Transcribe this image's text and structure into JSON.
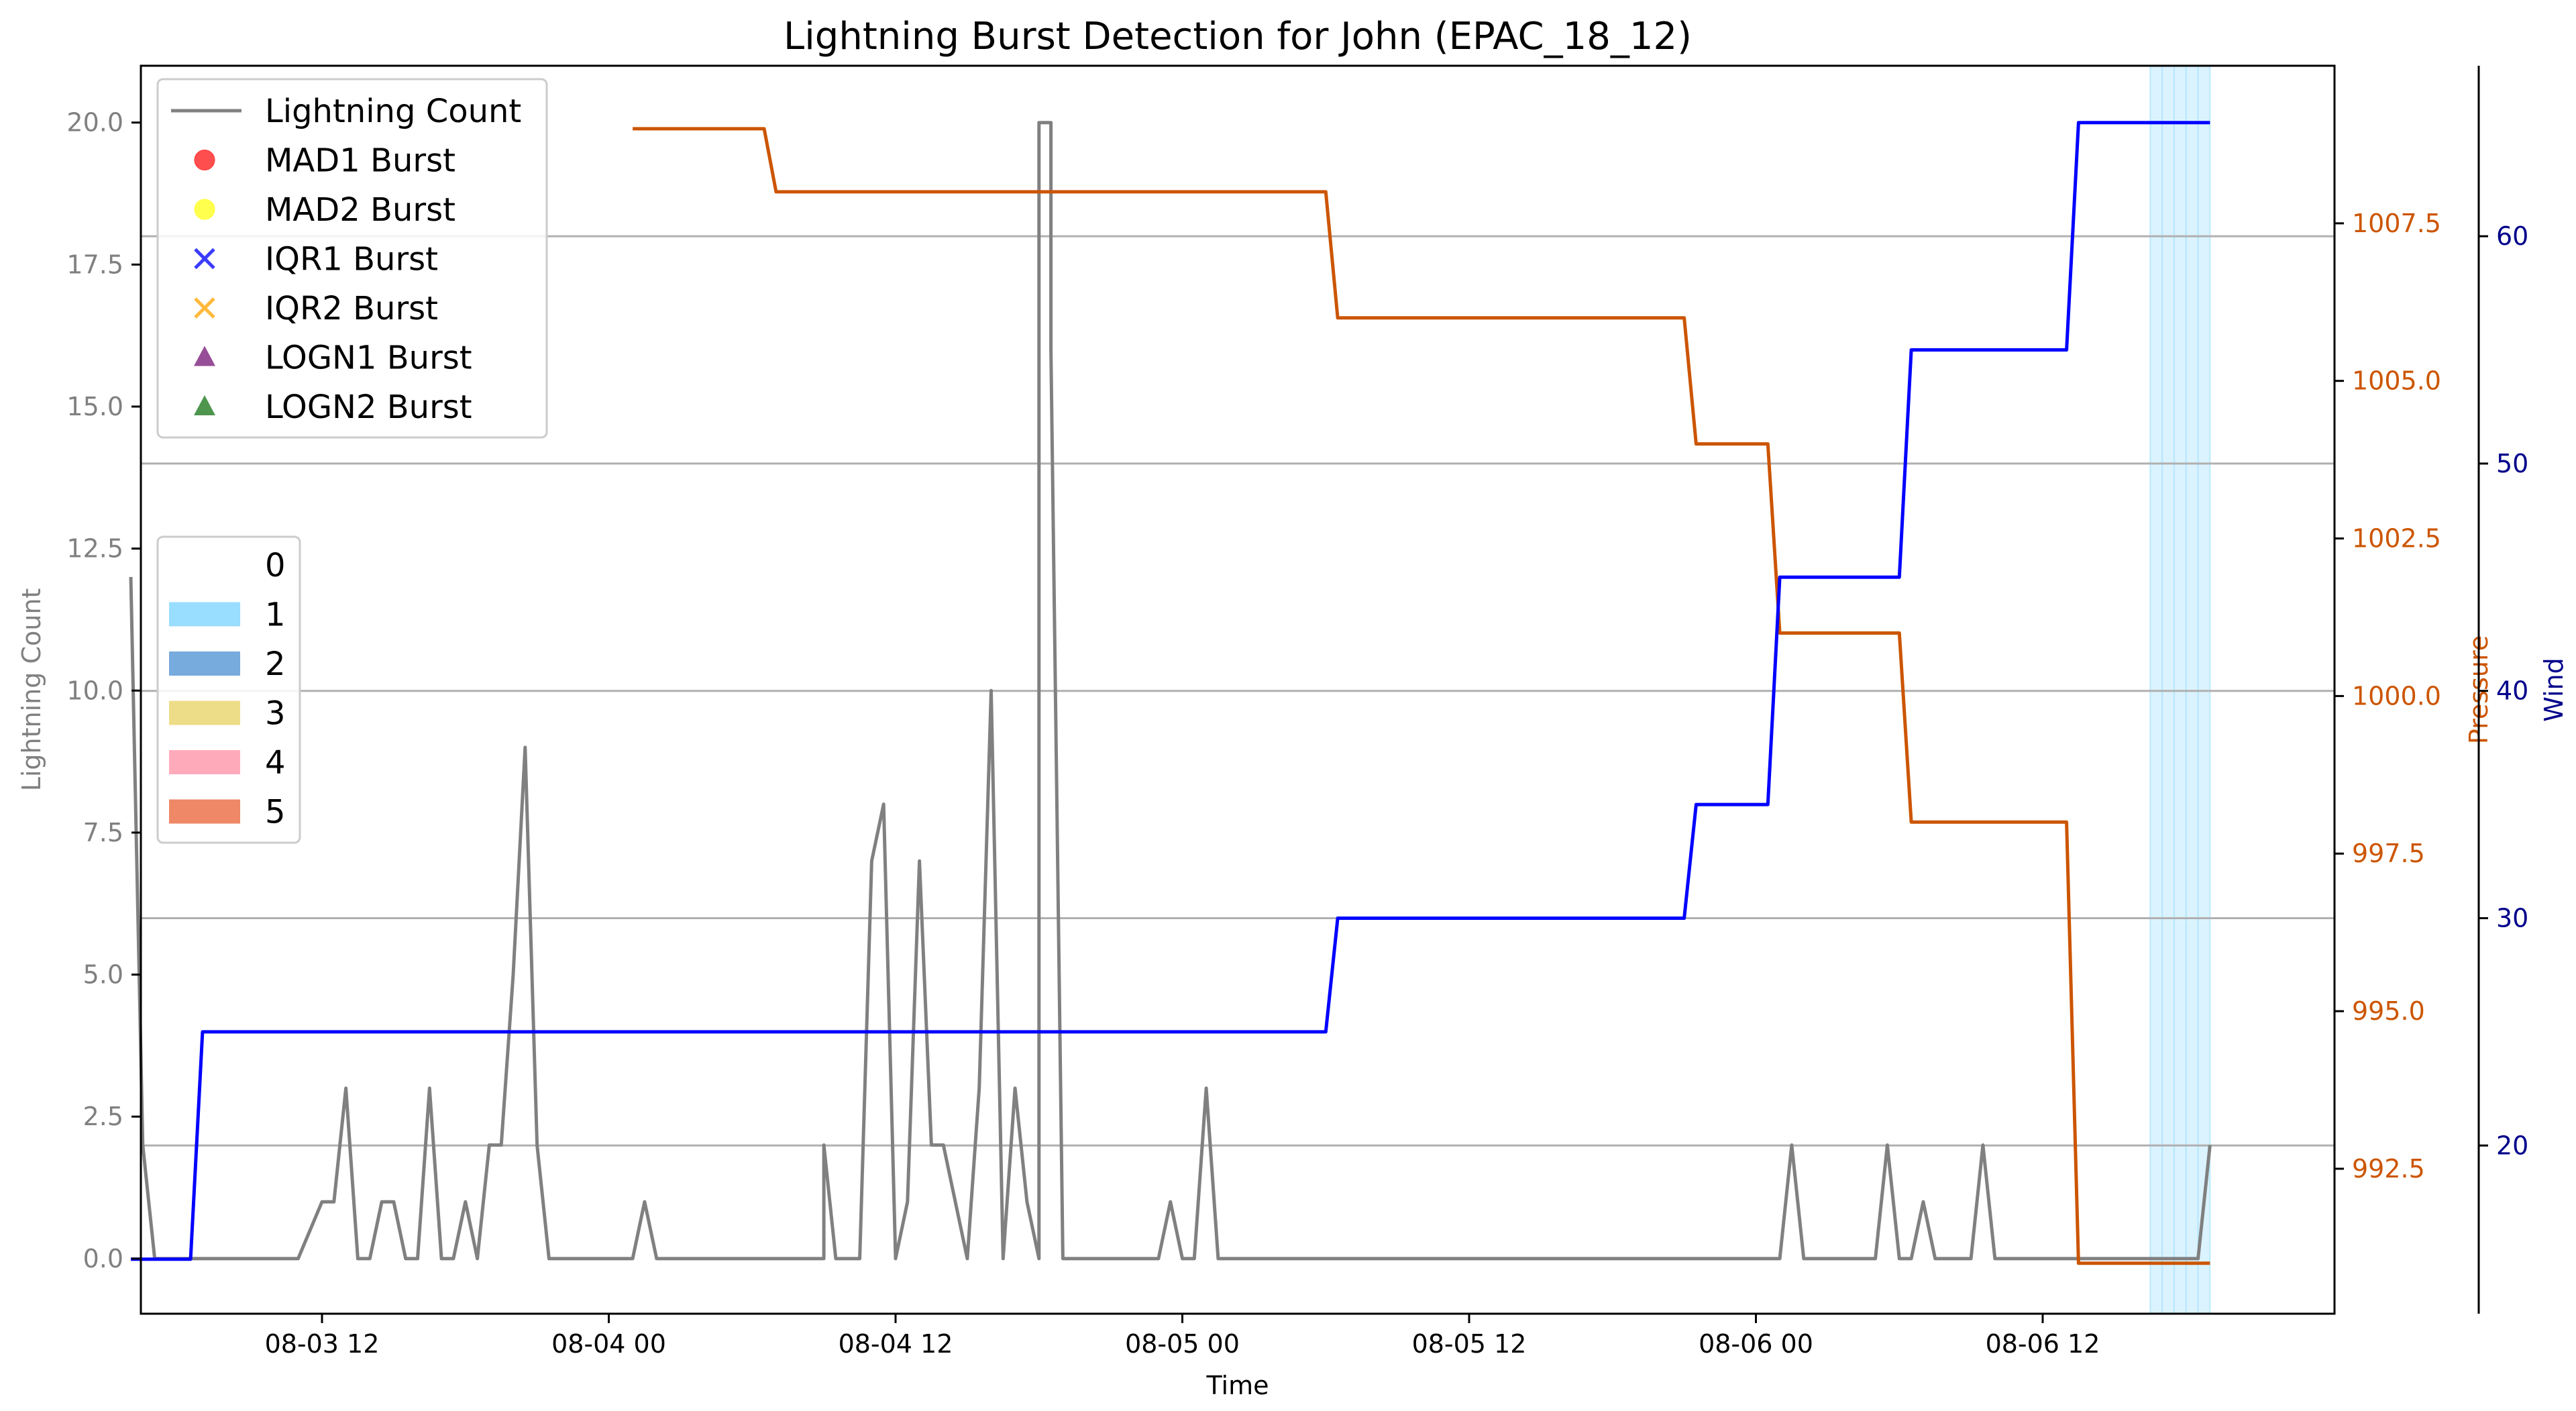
{
  "chart_data": {
    "type": "line",
    "title": "Lightning Burst Detection for John (EPAC_18_12)",
    "xlabel": "Time",
    "x_ticks": [
      "08-03 12",
      "08-04 00",
      "08-04 12",
      "08-05 00",
      "08-05 12",
      "08-06 00",
      "08-06 12"
    ],
    "axes": {
      "lightning": {
        "label": "Lightning Count",
        "ylim": [
          -0.97,
          21.0
        ],
        "ticks": [
          "0.0",
          "2.5",
          "5.0",
          "7.5",
          "10.0",
          "12.5",
          "15.0",
          "17.5",
          "20.0"
        ],
        "color": "#808080"
      },
      "pressure": {
        "label": "Pressure",
        "ylim": [
          990.2,
          1010.0
        ],
        "ticks": [
          "992.5",
          "995.0",
          "997.5",
          "1000.0",
          "1002.5",
          "1005.0",
          "1007.5"
        ],
        "color": "#cc5500"
      },
      "wind": {
        "label": "Wind",
        "ylim": [
          12.6,
          67.5
        ],
        "ticks": [
          "20",
          "30",
          "40",
          "50",
          "60"
        ],
        "color": "#00008b"
      }
    },
    "grid": "horizontal",
    "legend_placement": "upper-left",
    "legend_series": [
      {
        "label": "Lightning Count",
        "marker": "line",
        "color": "#808080"
      },
      {
        "label": "MAD1 Burst",
        "marker": "circle",
        "color": "#ff3b3b"
      },
      {
        "label": "MAD2 Burst",
        "marker": "circle",
        "color": "#ffff3b"
      },
      {
        "label": "IQR1 Burst",
        "marker": "x",
        "color": "#3b3bff"
      },
      {
        "label": "IQR2 Burst",
        "marker": "x",
        "color": "#ffb93b"
      },
      {
        "label": "LOGN1 Burst",
        "marker": "triangle",
        "color": "#8b3b8b"
      },
      {
        "label": "LOGN2 Burst",
        "marker": "triangle",
        "color": "#3b8b3b"
      }
    ],
    "category_legend": [
      {
        "label": "0",
        "color": "#ffffff"
      },
      {
        "label": "1",
        "color": "#99ddff"
      },
      {
        "label": "2",
        "color": "#77aadd"
      },
      {
        "label": "3",
        "color": "#eedd88"
      },
      {
        "label": "4",
        "color": "#ffaabb"
      },
      {
        "label": "5",
        "color": "#ee8866"
      }
    ],
    "category_span": {
      "category": 1,
      "x_start": 88.5,
      "x_end": 91.0
    },
    "series": [
      {
        "name": "Lightning Count",
        "color": "#808080",
        "points": [
          [
            4.0,
            12
          ],
          [
            4.5,
            2
          ],
          [
            5.0,
            0
          ],
          [
            6,
            0
          ],
          [
            7,
            0
          ],
          [
            8,
            0
          ],
          [
            9,
            0
          ],
          [
            10,
            0
          ],
          [
            11,
            0
          ],
          [
            12.0,
            1
          ],
          [
            12.5,
            1
          ],
          [
            13.0,
            3
          ],
          [
            13.5,
            0
          ],
          [
            14.0,
            0
          ],
          [
            14.5,
            1
          ],
          [
            15.0,
            1
          ],
          [
            15.5,
            0
          ],
          [
            16.0,
            0
          ],
          [
            16.5,
            3
          ],
          [
            17.0,
            0
          ],
          [
            17.5,
            0
          ],
          [
            18.0,
            1
          ],
          [
            18.5,
            0
          ],
          [
            19.0,
            2
          ],
          [
            19.5,
            2
          ],
          [
            20.0,
            5
          ],
          [
            20.5,
            9
          ],
          [
            21.0,
            2
          ],
          [
            21.5,
            0
          ],
          [
            22,
            0
          ],
          [
            23,
            0
          ],
          [
            24,
            0
          ],
          [
            25,
            0
          ],
          [
            25.5,
            1
          ],
          [
            26.0,
            0
          ],
          [
            27,
            0
          ],
          [
            28,
            0
          ],
          [
            29,
            0
          ],
          [
            30,
            0
          ],
          [
            31,
            0
          ],
          [
            32,
            0
          ],
          [
            33,
            0
          ],
          [
            33.0,
            2
          ],
          [
            33.5,
            0
          ],
          [
            34,
            0
          ],
          [
            34.5,
            0
          ],
          [
            35.0,
            7
          ],
          [
            35.5,
            8
          ],
          [
            36.0,
            0
          ],
          [
            36.5,
            1
          ],
          [
            37.0,
            7
          ],
          [
            37.5,
            2
          ],
          [
            38.0,
            2
          ],
          [
            39.0,
            0
          ],
          [
            39.5,
            3
          ],
          [
            40.0,
            10
          ],
          [
            40.5,
            0
          ],
          [
            41.0,
            3
          ],
          [
            41.5,
            1
          ],
          [
            42.0,
            0
          ],
          [
            42.0,
            20
          ],
          [
            42.5,
            20
          ],
          [
            42.5,
            16
          ],
          [
            43.0,
            0
          ],
          [
            44,
            0
          ],
          [
            45,
            0
          ],
          [
            46,
            0
          ],
          [
            47,
            0
          ],
          [
            47.0,
            0
          ],
          [
            47.5,
            1
          ],
          [
            48.0,
            0
          ],
          [
            48.5,
            0
          ],
          [
            49.0,
            3
          ],
          [
            49.5,
            0
          ],
          [
            50,
            0
          ],
          [
            55,
            0
          ],
          [
            60,
            0
          ],
          [
            65,
            0
          ],
          [
            70,
            0
          ],
          [
            73,
            0
          ],
          [
            73.5,
            2
          ],
          [
            74.0,
            0
          ],
          [
            77.0,
            0
          ],
          [
            77.5,
            2
          ],
          [
            78.0,
            0
          ],
          [
            78.5,
            0
          ],
          [
            79.0,
            1
          ],
          [
            79.5,
            0
          ],
          [
            81.0,
            0
          ],
          [
            81.5,
            2
          ],
          [
            82.0,
            0
          ],
          [
            85,
            0
          ],
          [
            88,
            0
          ],
          [
            90.5,
            0
          ],
          [
            91.0,
            2
          ]
        ]
      },
      {
        "name": "Pressure",
        "color": "#cc5500",
        "points": [
          [
            25.0,
            1009.0
          ],
          [
            30.5,
            1009.0
          ],
          [
            31.0,
            1008.0
          ],
          [
            54.0,
            1008.0
          ],
          [
            54.5,
            1006.0
          ],
          [
            69.0,
            1006.0
          ],
          [
            69.5,
            1004.0
          ],
          [
            72.5,
            1004.0
          ],
          [
            73.0,
            1001.0
          ],
          [
            78.0,
            1001.0
          ],
          [
            78.5,
            998.0
          ],
          [
            85.0,
            998.0
          ],
          [
            85.5,
            991.0
          ],
          [
            91.0,
            991.0
          ]
        ]
      },
      {
        "name": "Wind",
        "color": "#0000ff",
        "points": [
          [
            4.0,
            15
          ],
          [
            6.5,
            15
          ],
          [
            7.0,
            25
          ],
          [
            54.0,
            25
          ],
          [
            54.5,
            30
          ],
          [
            69.0,
            30
          ],
          [
            69.5,
            35
          ],
          [
            72.5,
            35
          ],
          [
            73.0,
            45
          ],
          [
            78.0,
            45
          ],
          [
            78.5,
            55
          ],
          [
            85.0,
            55
          ],
          [
            85.5,
            65
          ],
          [
            91.0,
            65
          ]
        ]
      }
    ]
  }
}
